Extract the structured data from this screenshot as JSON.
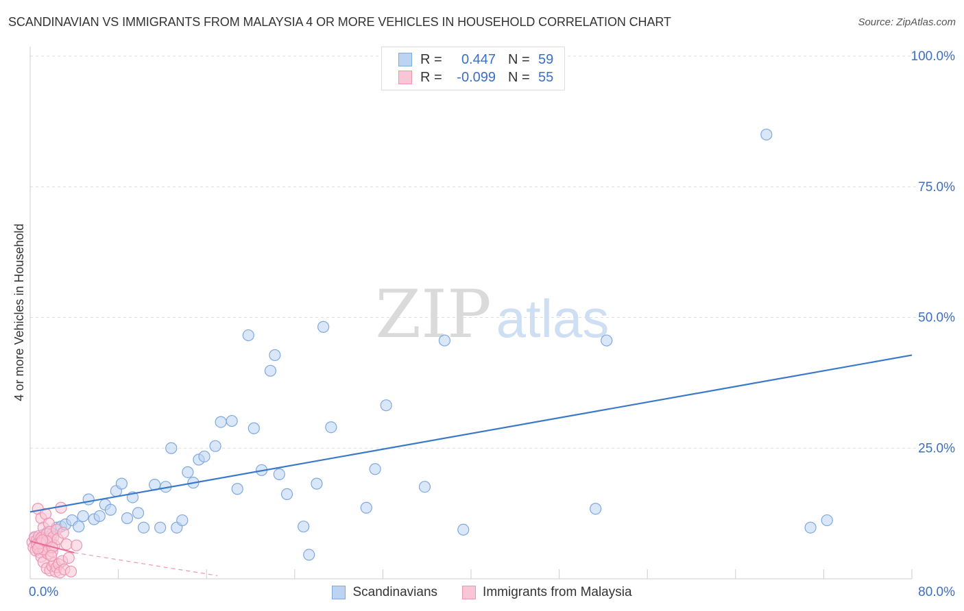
{
  "title": "SCANDINAVIAN VS IMMIGRANTS FROM MALAYSIA 4 OR MORE VEHICLES IN HOUSEHOLD CORRELATION CHART",
  "source": "Source: ZipAtlas.com",
  "watermark": {
    "zip": "ZIP",
    "atlas": "atlas"
  },
  "legend": {
    "rows": [
      {
        "swatch_fill": "#bcd4f2",
        "swatch_stroke": "#7ea8e0",
        "r_label": "R =",
        "r_value": "0.447",
        "n_label": "N =",
        "n_value": "59"
      },
      {
        "swatch_fill": "#f9c6d6",
        "swatch_stroke": "#ee94b3",
        "r_label": "R =",
        "r_value": "-0.099",
        "n_label": "N =",
        "n_value": "55"
      }
    ]
  },
  "bottom_legend": {
    "items": [
      {
        "label": "Scandinavians",
        "fill": "#bcd4f2",
        "stroke": "#7ea8e0"
      },
      {
        "label": "Immigrants from Malaysia",
        "fill": "#f9c6d6",
        "stroke": "#ee94b3"
      }
    ]
  },
  "chart_data": {
    "type": "scatter",
    "title": "SCANDINAVIAN VS IMMIGRANTS FROM MALAYSIA 4 OR MORE VEHICLES IN HOUSEHOLD CORRELATION CHART",
    "ylabel": "4 or more Vehicles in Household",
    "xlabel": "",
    "xlim": [
      0,
      80
    ],
    "ylim": [
      0,
      100
    ],
    "x_tick_labels": [
      {
        "value": 0,
        "label": "0.0%"
      },
      {
        "value": 80,
        "label": "80.0%"
      }
    ],
    "y_tick_labels": [
      {
        "value": 100,
        "label": "100.0%"
      },
      {
        "value": 75,
        "label": "75.0%"
      },
      {
        "value": 50,
        "label": "50.0%"
      },
      {
        "value": 25,
        "label": "25.0%"
      }
    ],
    "x_minor_ticks": [
      8,
      16,
      24,
      32,
      40,
      48,
      56,
      64,
      72,
      80
    ],
    "grid": true,
    "series": [
      {
        "name": "Scandinavians",
        "color": "#7ea8e0",
        "fill": "#bcd4f2",
        "trend": {
          "x": [
            0,
            80
          ],
          "y": [
            12.8,
            42.8
          ],
          "color": "#3a78c9",
          "dashed": false
        },
        "points": [
          [
            0.4,
            7.8
          ],
          [
            0.8,
            7.2
          ],
          [
            1.2,
            8.4
          ],
          [
            1.6,
            9.0
          ],
          [
            2.0,
            8.6
          ],
          [
            2.4,
            9.8
          ],
          [
            2.8,
            10.0
          ],
          [
            3.2,
            10.4
          ],
          [
            3.8,
            11.2
          ],
          [
            4.4,
            10.0
          ],
          [
            4.8,
            12.0
          ],
          [
            5.3,
            15.2
          ],
          [
            5.8,
            11.4
          ],
          [
            6.3,
            12.0
          ],
          [
            6.8,
            14.2
          ],
          [
            7.3,
            13.2
          ],
          [
            7.8,
            16.8
          ],
          [
            8.3,
            18.2
          ],
          [
            8.8,
            11.6
          ],
          [
            9.3,
            15.6
          ],
          [
            9.8,
            12.6
          ],
          [
            10.3,
            9.8
          ],
          [
            11.3,
            18.0
          ],
          [
            11.8,
            9.8
          ],
          [
            12.3,
            17.6
          ],
          [
            12.8,
            25.0
          ],
          [
            13.3,
            9.8
          ],
          [
            13.8,
            11.2
          ],
          [
            14.3,
            20.4
          ],
          [
            14.8,
            18.4
          ],
          [
            15.3,
            22.8
          ],
          [
            15.8,
            23.4
          ],
          [
            16.8,
            25.4
          ],
          [
            17.3,
            30.0
          ],
          [
            18.3,
            30.2
          ],
          [
            18.8,
            17.2
          ],
          [
            19.8,
            46.6
          ],
          [
            20.3,
            28.8
          ],
          [
            21.0,
            20.8
          ],
          [
            21.8,
            39.8
          ],
          [
            22.2,
            42.8
          ],
          [
            22.6,
            20.0
          ],
          [
            23.3,
            16.2
          ],
          [
            24.8,
            10.0
          ],
          [
            25.3,
            4.6
          ],
          [
            26.0,
            18.2
          ],
          [
            26.6,
            48.2
          ],
          [
            27.3,
            29.0
          ],
          [
            30.5,
            13.6
          ],
          [
            31.3,
            21.0
          ],
          [
            32.3,
            33.2
          ],
          [
            35.8,
            17.6
          ],
          [
            37.6,
            45.6
          ],
          [
            39.3,
            9.4
          ],
          [
            51.3,
            13.4
          ],
          [
            52.3,
            45.6
          ],
          [
            66.8,
            85.0
          ],
          [
            70.8,
            9.8
          ],
          [
            72.3,
            11.2
          ]
        ]
      },
      {
        "name": "Immigrants from Malaysia",
        "color": "#ee94b3",
        "fill": "#f9c6d6",
        "trend": {
          "x": [
            0,
            4
          ],
          "y": [
            7.2,
            5.0
          ],
          "x2": [
            4,
            17
          ],
          "y2": [
            5.0,
            0.6
          ],
          "color": "#e66a98",
          "dashed": true
        },
        "points": [
          [
            0.2,
            7.0
          ],
          [
            0.3,
            6.0
          ],
          [
            0.4,
            8.0
          ],
          [
            0.5,
            5.4
          ],
          [
            0.6,
            7.4
          ],
          [
            0.6,
            6.6
          ],
          [
            0.7,
            13.4
          ],
          [
            0.8,
            6.2
          ],
          [
            0.8,
            8.2
          ],
          [
            0.9,
            5.0
          ],
          [
            1.0,
            7.8
          ],
          [
            1.0,
            4.2
          ],
          [
            1.0,
            11.6
          ],
          [
            1.1,
            6.8
          ],
          [
            1.2,
            3.2
          ],
          [
            1.2,
            9.8
          ],
          [
            1.3,
            7.6
          ],
          [
            1.3,
            5.8
          ],
          [
            1.4,
            12.4
          ],
          [
            1.4,
            6.4
          ],
          [
            1.5,
            8.6
          ],
          [
            1.5,
            2.0
          ],
          [
            1.6,
            7.0
          ],
          [
            1.6,
            4.8
          ],
          [
            1.7,
            10.6
          ],
          [
            1.7,
            6.0
          ],
          [
            1.8,
            1.6
          ],
          [
            1.8,
            9.0
          ],
          [
            1.9,
            7.2
          ],
          [
            2.0,
            2.4
          ],
          [
            2.0,
            5.2
          ],
          [
            2.1,
            8.0
          ],
          [
            2.2,
            3.0
          ],
          [
            2.2,
            6.4
          ],
          [
            2.3,
            1.4
          ],
          [
            2.4,
            9.4
          ],
          [
            2.4,
            2.2
          ],
          [
            2.5,
            7.6
          ],
          [
            2.6,
            2.8
          ],
          [
            2.7,
            1.2
          ],
          [
            2.8,
            13.6
          ],
          [
            2.9,
            3.4
          ],
          [
            3.0,
            8.8
          ],
          [
            3.1,
            1.8
          ],
          [
            3.3,
            6.6
          ],
          [
            3.5,
            4.0
          ],
          [
            3.7,
            1.4
          ],
          [
            1.2,
            5.6
          ],
          [
            0.9,
            6.8
          ],
          [
            1.5,
            7.2
          ],
          [
            2.0,
            6.0
          ],
          [
            1.1,
            7.4
          ],
          [
            0.7,
            5.8
          ],
          [
            1.9,
            4.4
          ],
          [
            4.2,
            6.4
          ]
        ]
      }
    ]
  }
}
